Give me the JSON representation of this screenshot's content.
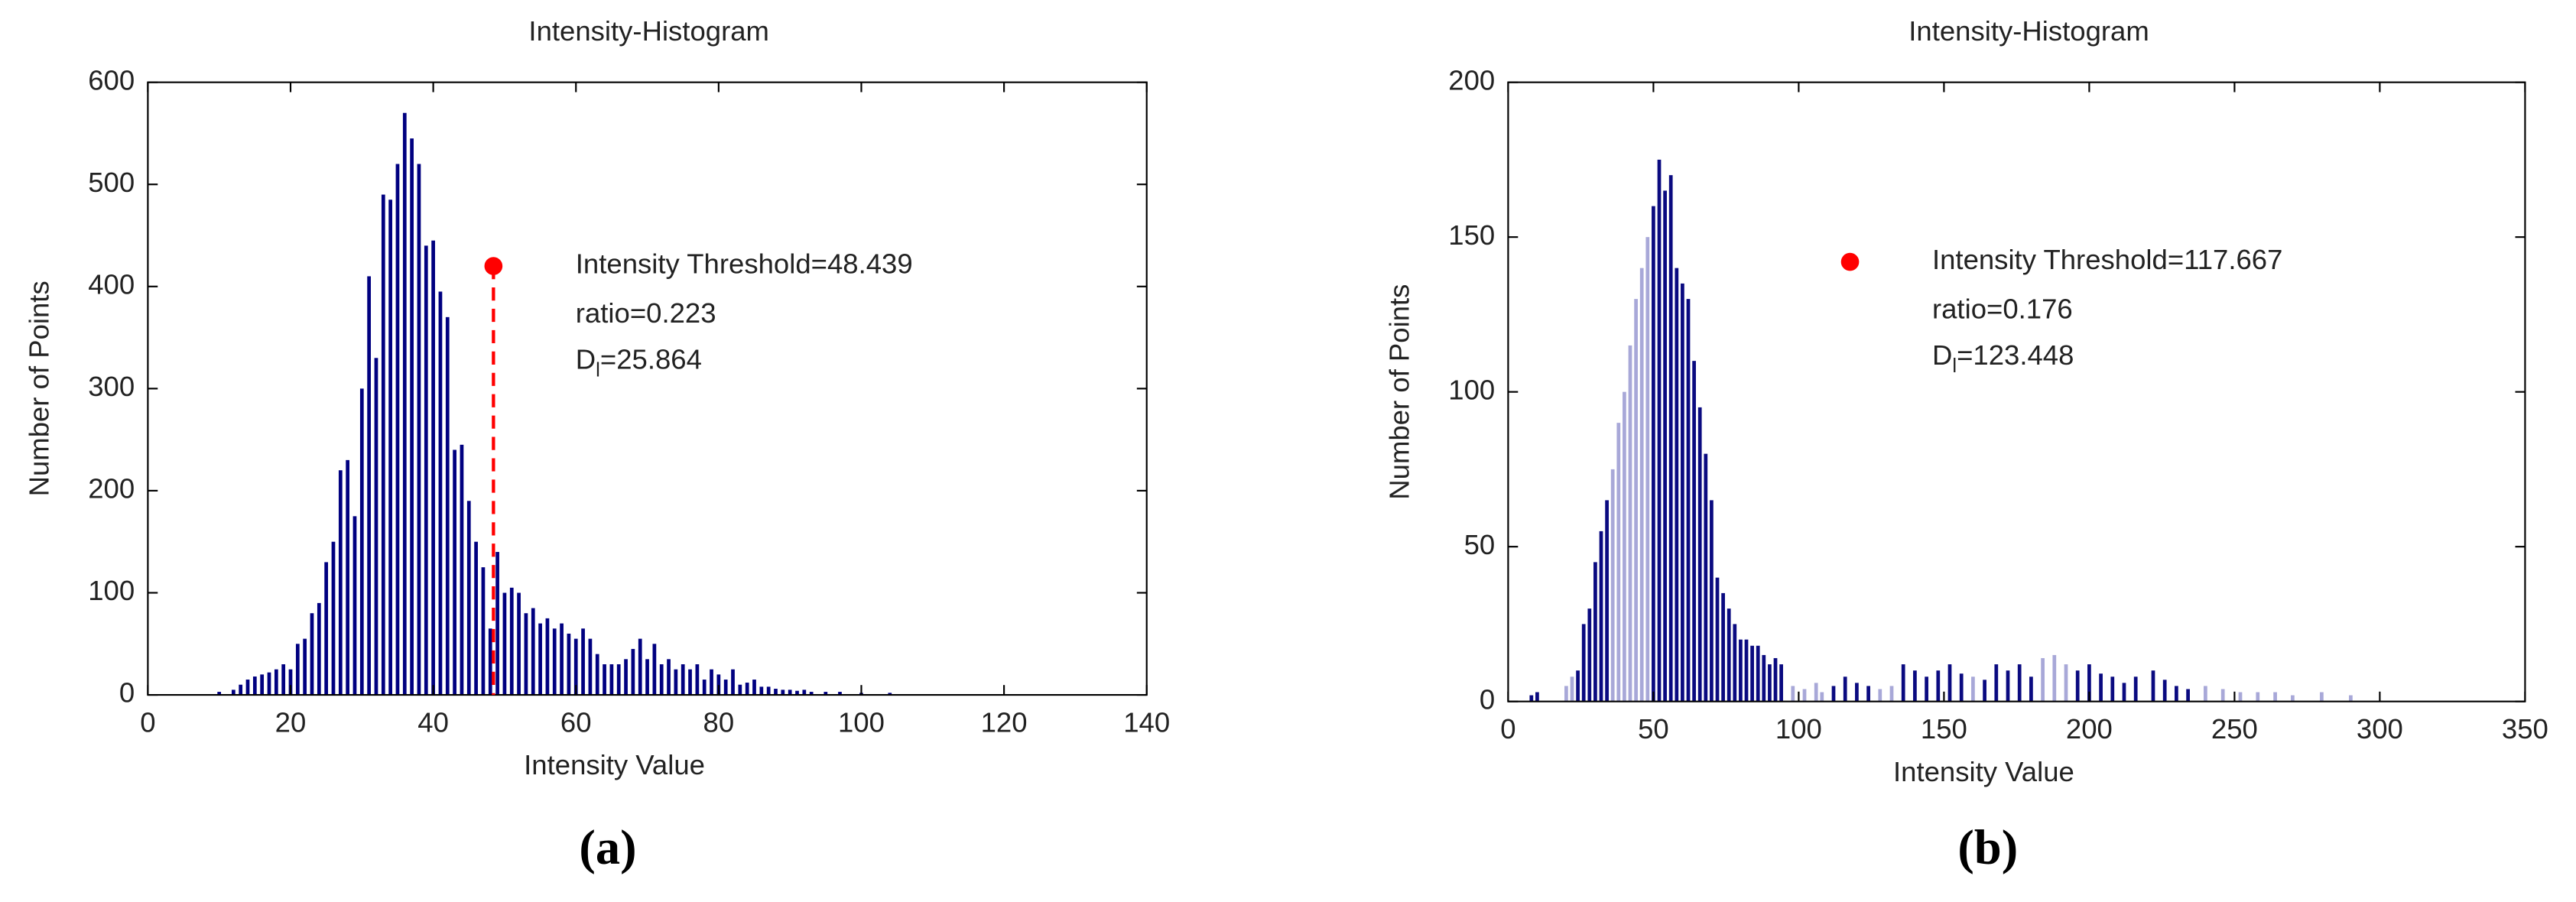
{
  "chart_data": [
    {
      "type": "bar",
      "title": "Intensity-Histogram",
      "xlabel": "Intensity Value",
      "ylabel": "Number of Points",
      "caption": "(a)",
      "xlim": [
        0,
        140
      ],
      "ylim": [
        0,
        600
      ],
      "xticks": [
        0,
        20,
        40,
        60,
        80,
        100,
        120,
        140
      ],
      "yticks": [
        0,
        100,
        200,
        300,
        400,
        500,
        600
      ],
      "series": [
        {
          "color": "#000080",
          "x": [
            10,
            12,
            13,
            14,
            15,
            16,
            17,
            18,
            19,
            20,
            21,
            22,
            23,
            24,
            25,
            26,
            27,
            28,
            29,
            30,
            31,
            32,
            33,
            34,
            35,
            36,
            37,
            38,
            39,
            40,
            41,
            42,
            43,
            44,
            45,
            46,
            47,
            48,
            49,
            50,
            51,
            52,
            53,
            54,
            55,
            56,
            57,
            58,
            59,
            60,
            61,
            62,
            63,
            64,
            65,
            66,
            67,
            68,
            69,
            70,
            71,
            72,
            73,
            74,
            75,
            76,
            77,
            78,
            79,
            80,
            81,
            82,
            83,
            84,
            85,
            86,
            87,
            88,
            89,
            90,
            91,
            92,
            93,
            95,
            97,
            100,
            104
          ],
          "values": [
            3,
            5,
            10,
            15,
            18,
            20,
            22,
            25,
            30,
            25,
            50,
            55,
            80,
            90,
            130,
            150,
            220,
            230,
            175,
            300,
            410,
            330,
            490,
            485,
            520,
            570,
            545,
            520,
            440,
            445,
            395,
            370,
            240,
            245,
            190,
            150,
            125,
            65,
            140,
            100,
            105,
            100,
            80,
            85,
            70,
            75,
            65,
            70,
            60,
            55,
            65,
            55,
            40,
            30,
            30,
            30,
            35,
            45,
            55,
            35,
            50,
            30,
            35,
            25,
            30,
            25,
            30,
            15,
            25,
            20,
            15,
            25,
            10,
            12,
            15,
            8,
            8,
            6,
            5,
            5,
            4,
            5,
            3,
            3,
            3,
            2,
            2
          ]
        }
      ],
      "threshold": {
        "x": 48.439,
        "y": 420,
        "color": "#ff0000",
        "dashed": true
      },
      "annotations": [
        "Intensity Threshold=48.439",
        "ratio=0.223"
      ],
      "dl": {
        "main": "D",
        "sub": "l",
        "text": "=25.864"
      }
    },
    {
      "type": "bar",
      "title": "Intensity-Histogram",
      "xlabel": "Intensity Value",
      "ylabel": "Number of Points",
      "caption": "(b)",
      "xlim": [
        0,
        350
      ],
      "ylim": [
        0,
        200
      ],
      "xticks": [
        0,
        50,
        100,
        150,
        200,
        250,
        300,
        350
      ],
      "yticks": [
        0,
        50,
        100,
        150,
        200
      ],
      "series": [
        {
          "color": "#0a0a80",
          "x": [
            8,
            10,
            24,
            26,
            28,
            30,
            32,
            34,
            50,
            52,
            54,
            56,
            58,
            60,
            62,
            64,
            66,
            68,
            70,
            72,
            74,
            76,
            78,
            80,
            82,
            84,
            86,
            88,
            90,
            92,
            94,
            112,
            116,
            120,
            124,
            136,
            140,
            144,
            148,
            152,
            156,
            164,
            168,
            172,
            176,
            180,
            196,
            200,
            204,
            208,
            212,
            216,
            222,
            226,
            230,
            234
          ],
          "values": [
            2,
            3,
            10,
            25,
            30,
            45,
            55,
            65,
            160,
            175,
            165,
            170,
            140,
            135,
            130,
            110,
            95,
            80,
            65,
            40,
            35,
            30,
            25,
            20,
            20,
            18,
            18,
            15,
            12,
            14,
            12,
            5,
            8,
            6,
            5,
            12,
            10,
            8,
            10,
            12,
            9,
            7,
            12,
            10,
            12,
            8,
            10,
            12,
            9,
            8,
            6,
            8,
            10,
            7,
            5,
            4
          ]
        },
        {
          "color": "#a8a8d8",
          "x": [
            20,
            22,
            36,
            38,
            40,
            42,
            44,
            46,
            48,
            98,
            102,
            106,
            108,
            128,
            132,
            160,
            184,
            188,
            192,
            240,
            246,
            252,
            258,
            264,
            270,
            280,
            290
          ],
          "values": [
            5,
            8,
            75,
            90,
            100,
            115,
            130,
            140,
            150,
            5,
            4,
            6,
            3,
            4,
            5,
            8,
            14,
            15,
            12,
            5,
            4,
            3,
            3,
            3,
            2,
            3,
            2
          ]
        }
      ],
      "threshold": {
        "x": 117.667,
        "y": 142,
        "color": "#ff0000",
        "dashed": false
      },
      "annotations": [
        "Intensity Threshold=117.667",
        "ratio=0.176"
      ],
      "dl": {
        "main": "D",
        "sub": "l",
        "text": "=123.448"
      }
    }
  ]
}
